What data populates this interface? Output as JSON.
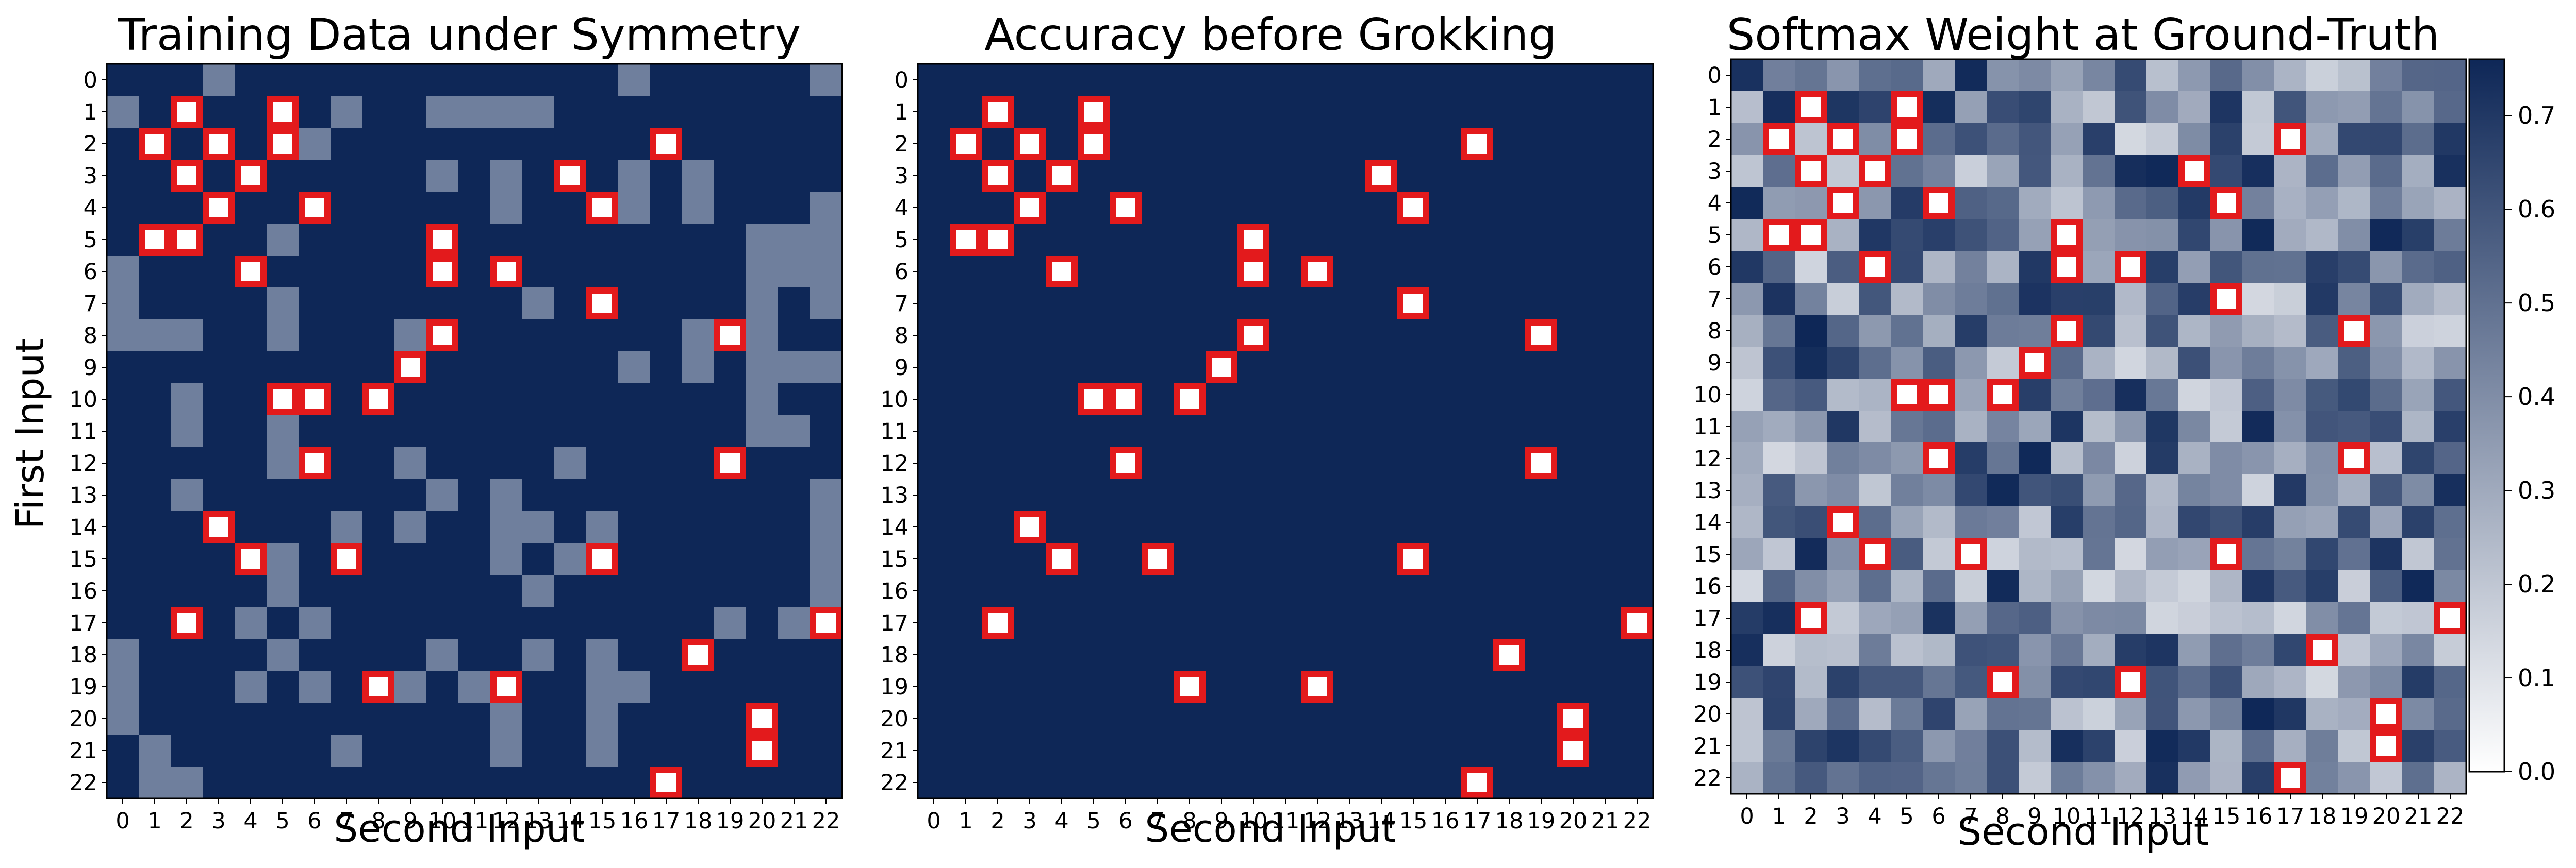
{
  "chart_data": [
    {
      "type": "heatmap",
      "title": "Training Data under Symmetry",
      "xlabel": "Second Input",
      "ylabel": "First Input",
      "x_ticks": [
        "0",
        "1",
        "2",
        "3",
        "4",
        "5",
        "6",
        "7",
        "8",
        "9",
        "10",
        "11",
        "12",
        "13",
        "14",
        "15",
        "16",
        "17",
        "18",
        "19",
        "20",
        "21",
        "22"
      ],
      "y_ticks": [
        "0",
        "1",
        "2",
        "3",
        "4",
        "5",
        "6",
        "7",
        "8",
        "9",
        "10",
        "11",
        "12",
        "13",
        "14",
        "15",
        "16",
        "17",
        "18",
        "19",
        "20",
        "21",
        "22"
      ],
      "colormap": {
        "low": "#0e2757",
        "high": "#6f7f9d"
      },
      "highlight_markers": "red-outlined white squares",
      "grid": false
    },
    {
      "type": "heatmap",
      "title": "Accuracy before Grokking",
      "xlabel": "Second Input",
      "ylabel": "",
      "x_ticks": [
        "0",
        "1",
        "2",
        "3",
        "4",
        "5",
        "6",
        "7",
        "8",
        "9",
        "10",
        "11",
        "12",
        "13",
        "14",
        "15",
        "16",
        "17",
        "18",
        "19",
        "20",
        "21",
        "22"
      ],
      "y_ticks": [
        "0",
        "1",
        "2",
        "3",
        "4",
        "5",
        "6",
        "7",
        "8",
        "9",
        "10",
        "11",
        "12",
        "13",
        "14",
        "15",
        "16",
        "17",
        "18",
        "19",
        "20",
        "21",
        "22"
      ],
      "colormap": {
        "uniform": "#0e2757"
      },
      "highlight_markers": "red-outlined white squares",
      "grid": false
    },
    {
      "type": "heatmap",
      "title": "Softmax Weight at Ground-Truth",
      "xlabel": "Second Input",
      "ylabel": "",
      "x_ticks": [
        "0",
        "1",
        "2",
        "3",
        "4",
        "5",
        "6",
        "7",
        "8",
        "9",
        "10",
        "11",
        "12",
        "13",
        "14",
        "15",
        "16",
        "17",
        "18",
        "19",
        "20",
        "21",
        "22"
      ],
      "y_ticks": [
        "0",
        "1",
        "2",
        "3",
        "4",
        "5",
        "6",
        "7",
        "8",
        "9",
        "10",
        "11",
        "12",
        "13",
        "14",
        "15",
        "16",
        "17",
        "18",
        "19",
        "20",
        "21",
        "22"
      ],
      "colormap": {
        "low": "#ffffff",
        "high": "#0e2757"
      },
      "colorbar": {
        "range": [
          0.0,
          0.76
        ],
        "ticks": [
          "0.0",
          "0.1",
          "0.2",
          "0.3",
          "0.4",
          "0.5",
          "0.6",
          "0.7"
        ]
      },
      "highlight_markers": "red-outlined white squares",
      "grid": false
    }
  ],
  "highlighted_cells": [
    [
      1,
      2
    ],
    [
      1,
      5
    ],
    [
      2,
      1
    ],
    [
      2,
      3
    ],
    [
      2,
      5
    ],
    [
      2,
      17
    ],
    [
      3,
      2
    ],
    [
      3,
      4
    ],
    [
      3,
      14
    ],
    [
      4,
      3
    ],
    [
      4,
      6
    ],
    [
      4,
      15
    ],
    [
      5,
      1
    ],
    [
      5,
      2
    ],
    [
      5,
      10
    ],
    [
      6,
      4
    ],
    [
      6,
      10
    ],
    [
      6,
      12
    ],
    [
      7,
      15
    ],
    [
      8,
      10
    ],
    [
      8,
      19
    ],
    [
      9,
      9
    ],
    [
      10,
      5
    ],
    [
      10,
      6
    ],
    [
      10,
      8
    ],
    [
      12,
      6
    ],
    [
      12,
      19
    ],
    [
      14,
      3
    ],
    [
      15,
      4
    ],
    [
      15,
      7
    ],
    [
      15,
      15
    ],
    [
      17,
      2
    ],
    [
      17,
      22
    ],
    [
      18,
      18
    ],
    [
      19,
      8
    ],
    [
      19,
      12
    ],
    [
      20,
      20
    ],
    [
      21,
      20
    ],
    [
      22,
      17
    ]
  ],
  "lighter_cells_panel1": [
    [
      0,
      3
    ],
    [
      0,
      16
    ],
    [
      0,
      22
    ],
    [
      1,
      0
    ],
    [
      1,
      7
    ],
    [
      1,
      10
    ],
    [
      1,
      11
    ],
    [
      1,
      12
    ],
    [
      1,
      13
    ],
    [
      2,
      6
    ],
    [
      3,
      10
    ],
    [
      3,
      12
    ],
    [
      3,
      16
    ],
    [
      3,
      18
    ],
    [
      4,
      12
    ],
    [
      4,
      16
    ],
    [
      4,
      18
    ],
    [
      4,
      22
    ],
    [
      5,
      5
    ],
    [
      5,
      20
    ],
    [
      5,
      21
    ],
    [
      5,
      22
    ],
    [
      6,
      0
    ],
    [
      6,
      20
    ],
    [
      6,
      21
    ],
    [
      6,
      22
    ],
    [
      7,
      0
    ],
    [
      7,
      5
    ],
    [
      7,
      13
    ],
    [
      7,
      20
    ],
    [
      7,
      22
    ],
    [
      8,
      0
    ],
    [
      8,
      1
    ],
    [
      8,
      2
    ],
    [
      8,
      5
    ],
    [
      8,
      9
    ],
    [
      8,
      18
    ],
    [
      8,
      20
    ],
    [
      9,
      16
    ],
    [
      9,
      18
    ],
    [
      9,
      20
    ],
    [
      9,
      21
    ],
    [
      9,
      22
    ],
    [
      10,
      2
    ],
    [
      10,
      20
    ],
    [
      11,
      2
    ],
    [
      11,
      5
    ],
    [
      11,
      20
    ],
    [
      11,
      21
    ],
    [
      12,
      5
    ],
    [
      12,
      9
    ],
    [
      12,
      14
    ],
    [
      13,
      2
    ],
    [
      13,
      10
    ],
    [
      13,
      12
    ],
    [
      13,
      22
    ],
    [
      14,
      7
    ],
    [
      14,
      9
    ],
    [
      14,
      12
    ],
    [
      14,
      13
    ],
    [
      14,
      15
    ],
    [
      14,
      22
    ],
    [
      15,
      5
    ],
    [
      15,
      12
    ],
    [
      15,
      14
    ],
    [
      15,
      22
    ],
    [
      16,
      5
    ],
    [
      16,
      13
    ],
    [
      16,
      22
    ],
    [
      17,
      4
    ],
    [
      17,
      6
    ],
    [
      17,
      19
    ],
    [
      17,
      21
    ],
    [
      18,
      0
    ],
    [
      18,
      5
    ],
    [
      18,
      10
    ],
    [
      18,
      13
    ],
    [
      18,
      15
    ],
    [
      19,
      0
    ],
    [
      19,
      4
    ],
    [
      19,
      6
    ],
    [
      19,
      9
    ],
    [
      19,
      11
    ],
    [
      19,
      15
    ],
    [
      19,
      16
    ],
    [
      20,
      0
    ],
    [
      20,
      12
    ],
    [
      20,
      15
    ],
    [
      21,
      1
    ],
    [
      21,
      7
    ],
    [
      21,
      12
    ],
    [
      21,
      15
    ],
    [
      22,
      1
    ],
    [
      22,
      2
    ]
  ]
}
